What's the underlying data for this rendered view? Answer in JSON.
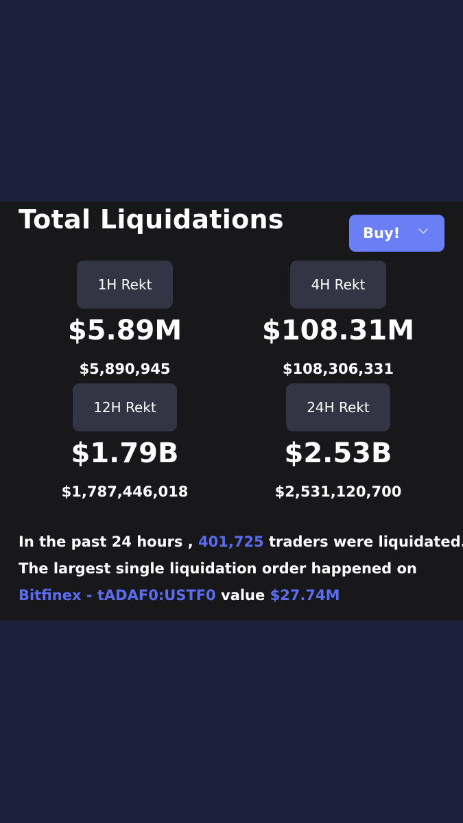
{
  "panel": {
    "title": "Total Liquidations",
    "filter": {
      "selected": "Buy!",
      "icon": "chevron-down-icon",
      "color": "#6a7ef5"
    }
  },
  "stats": [
    {
      "label": "1H Rekt",
      "amount": "$5.89M",
      "exact": "$5,890,945"
    },
    {
      "label": "4H Rekt",
      "amount": "$108.31M",
      "exact": "$108,306,331"
    },
    {
      "label": "12H Rekt",
      "amount": "$1.79B",
      "exact": "$1,787,446,018"
    },
    {
      "label": "24H Rekt",
      "amount": "$2.53B",
      "exact": "$2,531,120,700"
    }
  ],
  "summary": {
    "prefix": "In the past 24 hours ,",
    "traders": "401,725",
    "traders_suffix": "traders were liquidated.",
    "line2": "The largest single liquidation order happened on",
    "exchange": "Bitfinex - tADAF0:USTF0",
    "value_label": "value",
    "value": "$27.74M"
  },
  "colors": {
    "page_background": "#1c213b",
    "panel_background": "#18181b",
    "pill_background": "#333544",
    "highlight": "#5a6cf0"
  }
}
